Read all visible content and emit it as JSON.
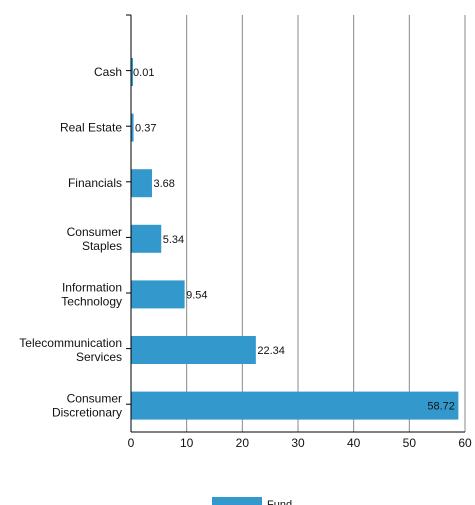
{
  "chart_data": {
    "type": "bar",
    "orientation": "horizontal",
    "categories": [
      [
        "Cash"
      ],
      [
        "Real Estate"
      ],
      [
        "Financials"
      ],
      [
        "Consumer",
        "Staples"
      ],
      [
        "Information",
        "Technology"
      ],
      [
        "Telecommunication",
        "Services"
      ],
      [
        "Consumer",
        "Discretionary"
      ]
    ],
    "series": [
      {
        "name": "Fund",
        "color": "#3399cc",
        "values": [
          0.01,
          0.37,
          3.68,
          5.34,
          9.54,
          22.34,
          58.72
        ],
        "labels": [
          "0.01",
          "0.37",
          "3.68",
          "5.34",
          "9.54",
          "22.34",
          "58.72"
        ]
      }
    ],
    "xlim": [
      0,
      60
    ],
    "xticks": [
      "0",
      "10",
      "20",
      "30",
      "40",
      "50",
      "60"
    ],
    "grid": "vertical",
    "legend": "bottom"
  }
}
